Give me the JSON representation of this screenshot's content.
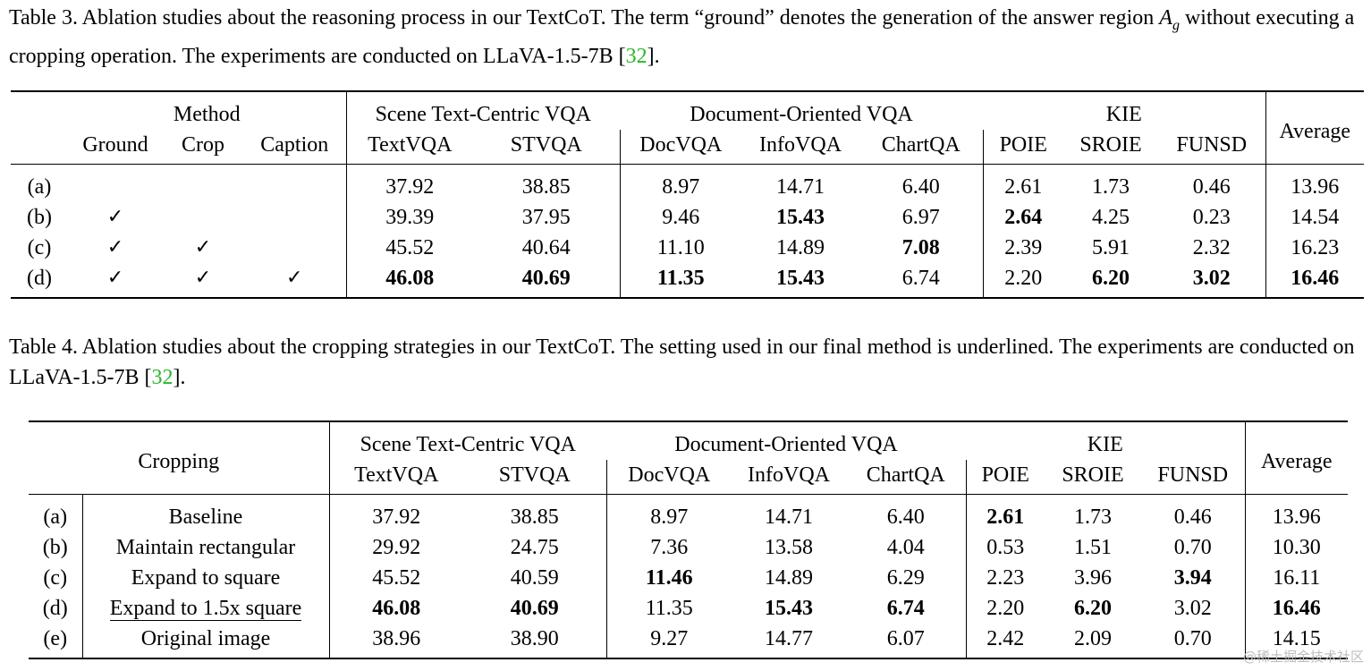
{
  "table3": {
    "caption_before": "Table 3. Ablation studies about the reasoning process in our TextCoT. The term “ground” denotes the generation of the answer region ",
    "caption_var": "A",
    "caption_sub": "g",
    "caption_mid": " without executing a cropping operation. The experiments are conducted on LLaVA-1.5-7B [",
    "caption_cite": "32",
    "caption_end": "].",
    "header": {
      "method": "Method",
      "ground": "Ground",
      "crop": "Crop",
      "caption": "Caption",
      "scene": "Scene Text-Centric VQA",
      "document": "Document-Oriented VQA",
      "kie": "KIE",
      "average": "Average",
      "textvqa": "TextVQA",
      "stvqa": "STVQA",
      "docvqa": "DocVQA",
      "infovqa": "InfoVQA",
      "chartqa": "ChartQA",
      "poie": "POIE",
      "sroie": "SROIE",
      "funsd": "FUNSD"
    },
    "check": "✓",
    "rows": [
      {
        "id": "(a)",
        "ground": "",
        "crop": "",
        "caption": "",
        "textvqa": "37.92",
        "stvqa": "38.85",
        "docvqa": "8.97",
        "infovqa": "14.71",
        "chartqa": "6.40",
        "poie": "2.61",
        "sroie": "1.73",
        "funsd": "0.46",
        "average": "13.96"
      },
      {
        "id": "(b)",
        "ground": "✓",
        "crop": "",
        "caption": "",
        "textvqa": "39.39",
        "stvqa": "37.95",
        "docvqa": "9.46",
        "infovqa": "15.43",
        "chartqa": "6.97",
        "poie": "2.64",
        "sroie": "4.25",
        "funsd": "0.23",
        "average": "14.54"
      },
      {
        "id": "(c)",
        "ground": "✓",
        "crop": "✓",
        "caption": "",
        "textvqa": "45.52",
        "stvqa": "40.64",
        "docvqa": "11.10",
        "infovqa": "14.89",
        "chartqa": "7.08",
        "poie": "2.39",
        "sroie": "5.91",
        "funsd": "2.32",
        "average": "16.23"
      },
      {
        "id": "(d)",
        "ground": "✓",
        "crop": "✓",
        "caption": "✓",
        "textvqa": "46.08",
        "stvqa": "40.69",
        "docvqa": "11.35",
        "infovqa": "15.43",
        "chartqa": "6.74",
        "poie": "2.20",
        "sroie": "6.20",
        "funsd": "3.02",
        "average": "16.46"
      }
    ]
  },
  "table4": {
    "caption_before": "Table 4. Ablation studies about the cropping strategies in our TextCoT. The setting used in our final method is underlined. The experiments are conducted on LLaVA-1.5-7B [",
    "caption_cite": "32",
    "caption_end": "].",
    "header": {
      "cropping": "Cropping",
      "scene": "Scene Text-Centric VQA",
      "document": "Document-Oriented VQA",
      "kie": "KIE",
      "average": "Average",
      "textvqa": "TextVQA",
      "stvqa": "STVQA",
      "docvqa": "DocVQA",
      "infovqa": "InfoVQA",
      "chartqa": "ChartQA",
      "poie": "POIE",
      "sroie": "SROIE",
      "funsd": "FUNSD"
    },
    "rows": [
      {
        "id": "(a)",
        "name": "Baseline",
        "textvqa": "37.92",
        "stvqa": "38.85",
        "docvqa": "8.97",
        "infovqa": "14.71",
        "chartqa": "6.40",
        "poie": "2.61",
        "sroie": "1.73",
        "funsd": "0.46",
        "average": "13.96"
      },
      {
        "id": "(b)",
        "name": "Maintain rectangular",
        "textvqa": "29.92",
        "stvqa": "24.75",
        "docvqa": "7.36",
        "infovqa": "13.58",
        "chartqa": "4.04",
        "poie": "0.53",
        "sroie": "1.51",
        "funsd": "0.70",
        "average": "10.30"
      },
      {
        "id": "(c)",
        "name": "Expand to square",
        "textvqa": "45.52",
        "stvqa": "40.59",
        "docvqa": "11.46",
        "infovqa": "14.89",
        "chartqa": "6.29",
        "poie": "2.23",
        "sroie": "3.96",
        "funsd": "3.94",
        "average": "16.11"
      },
      {
        "id": "(d)",
        "name": "Expand to 1.5x square",
        "textvqa": "46.08",
        "stvqa": "40.69",
        "docvqa": "11.35",
        "infovqa": "15.43",
        "chartqa": "6.74",
        "poie": "2.20",
        "sroie": "6.20",
        "funsd": "3.02",
        "average": "16.46"
      },
      {
        "id": "(e)",
        "name": "Original image",
        "textvqa": "38.96",
        "stvqa": "38.90",
        "docvqa": "9.27",
        "infovqa": "14.77",
        "chartqa": "6.07",
        "poie": "2.42",
        "sroie": "2.09",
        "funsd": "0.70",
        "average": "14.15"
      }
    ]
  },
  "watermark": "@稀土掘金技术社区"
}
